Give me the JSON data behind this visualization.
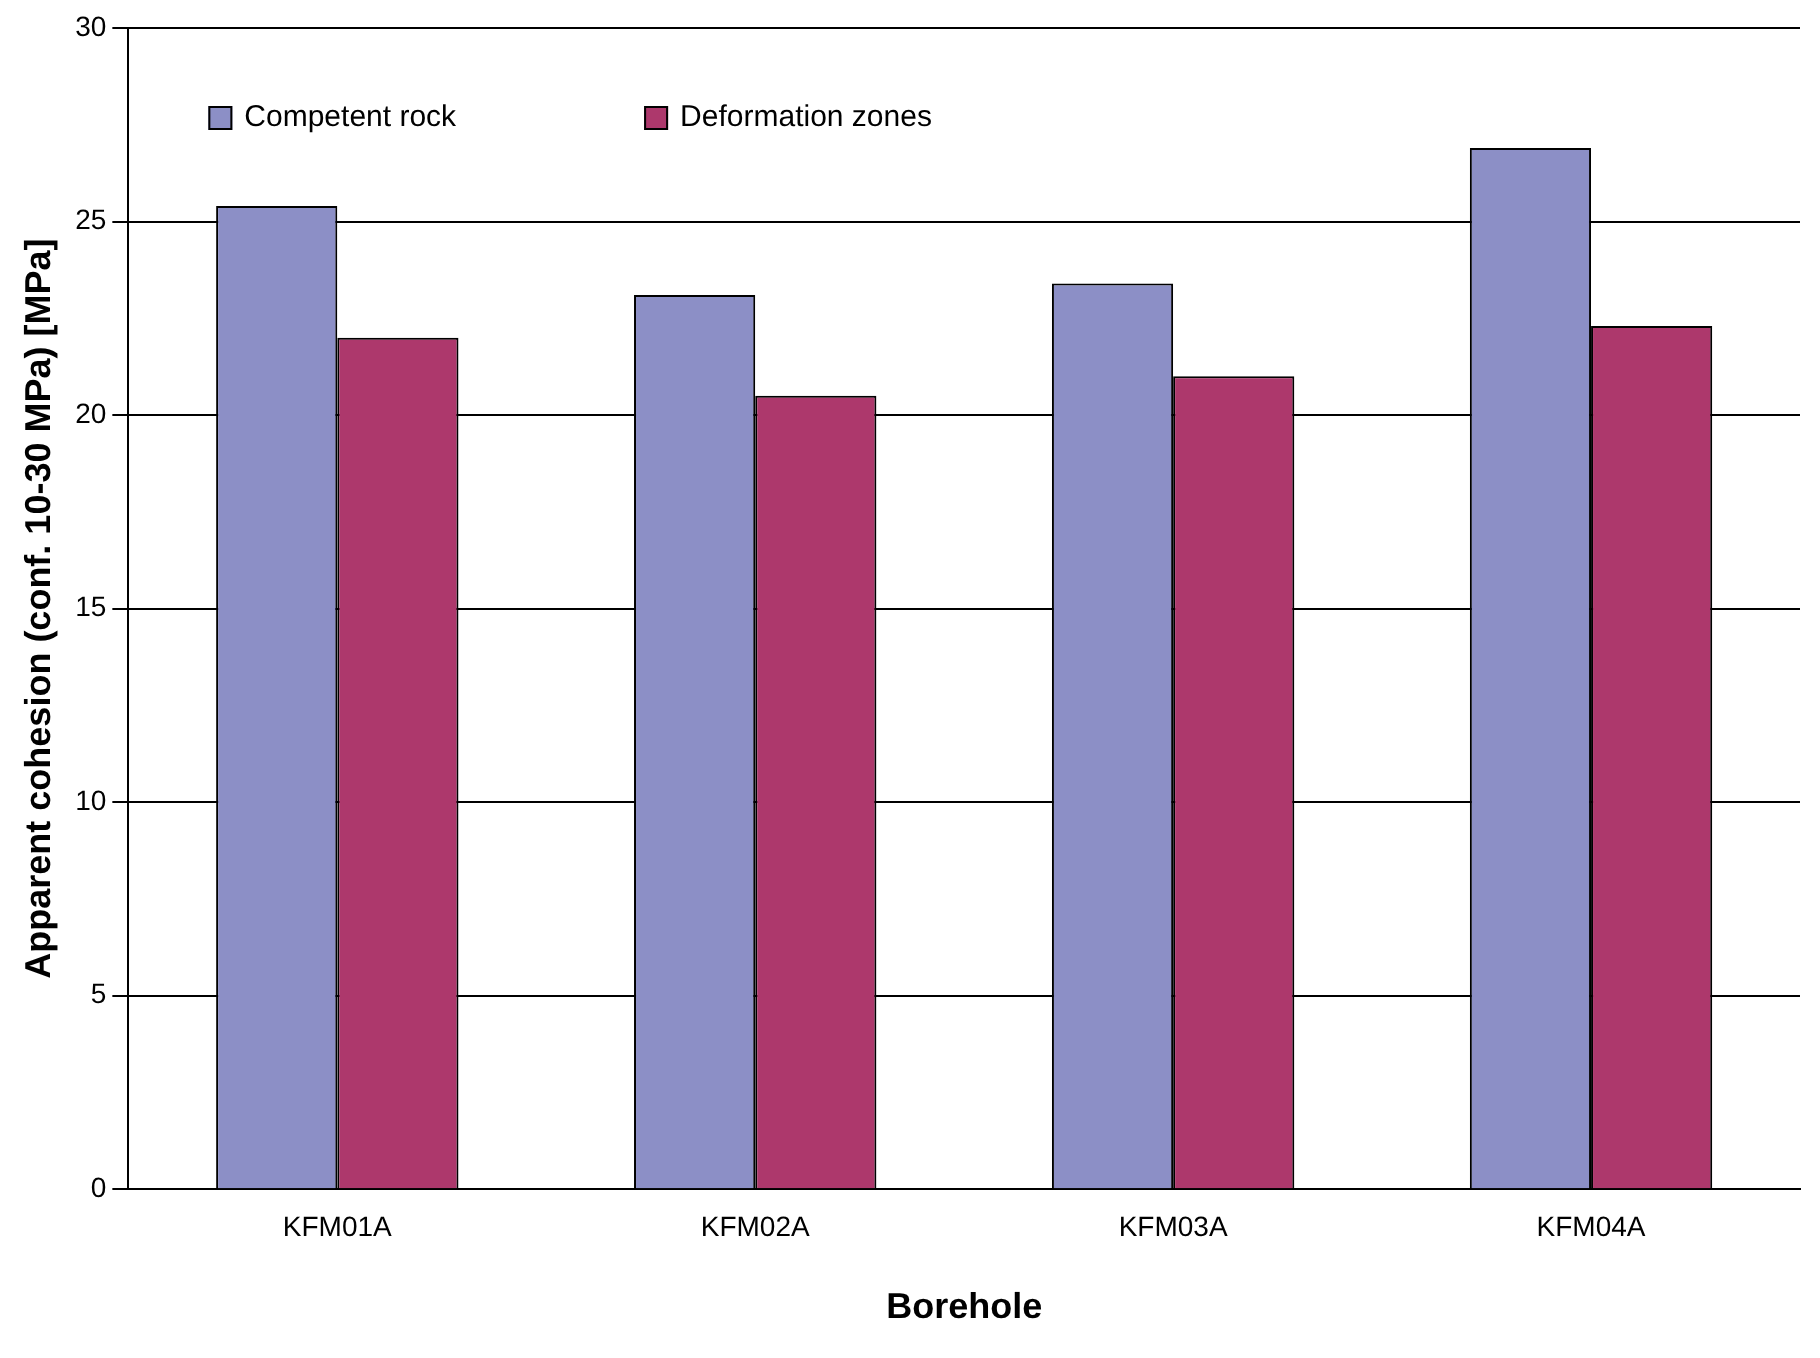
{
  "chart_data": {
    "type": "bar",
    "xlabel": "Borehole",
    "ylabel": "Apparent cohesion (conf. 10-30 MPa) [MPa]",
    "categories": [
      "KFM01A",
      "KFM02A",
      "KFM03A",
      "KFM04A"
    ],
    "series": [
      {
        "name": "Competent rock",
        "color": "#8c8fc6",
        "values": [
          25.4,
          23.1,
          23.4,
          26.9
        ]
      },
      {
        "name": "Deformation zones",
        "color": "#ad386c",
        "values": [
          22.0,
          20.5,
          21.0,
          22.3
        ]
      }
    ],
    "ylim": [
      0,
      30
    ],
    "yticks": [
      0,
      5,
      10,
      15,
      20,
      25,
      30
    ],
    "grid": "y",
    "legend": "top left"
  }
}
